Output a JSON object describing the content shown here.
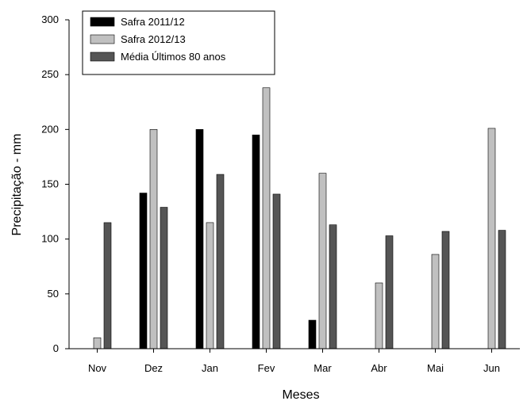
{
  "chart_data": {
    "type": "bar",
    "categories": [
      "Nov",
      "Dez",
      "Jan",
      "Fev",
      "Mar",
      "Abr",
      "Mai",
      "Jun"
    ],
    "series": [
      {
        "name": "Safra 2011/12",
        "color": "#000000",
        "values": [
          0,
          142,
          200,
          195,
          26,
          0,
          0,
          0
        ]
      },
      {
        "name": "Safra 2012/13",
        "color": "#c0c0c0",
        "values": [
          10,
          200,
          115,
          238,
          160,
          60,
          86,
          201
        ]
      },
      {
        "name": "Média Últimos 80 anos",
        "color": "#555555",
        "values": [
          115,
          129,
          159,
          141,
          113,
          103,
          107,
          108
        ]
      }
    ],
    "xlabel": "Meses",
    "ylabel": "Precipitação - mm",
    "ylim": [
      0,
      300
    ],
    "yticks": [
      0,
      50,
      100,
      150,
      200,
      250,
      300
    ],
    "grid": false,
    "legend_position": "top-left"
  }
}
